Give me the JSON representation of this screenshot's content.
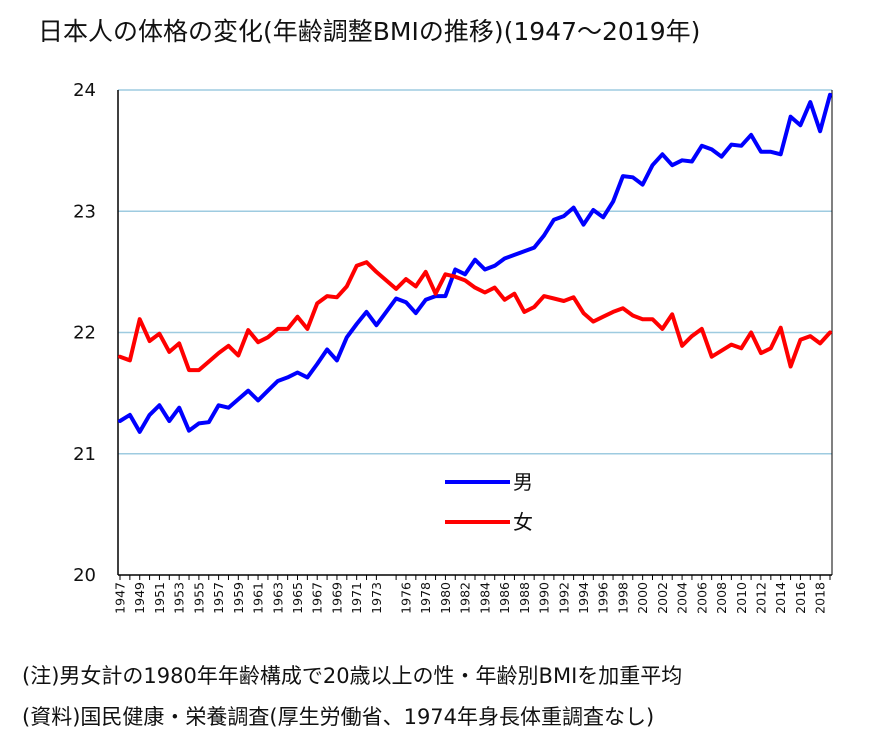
{
  "title": "日本人の体格の変化(年齢調整BMIの推移)(1947〜2019年)",
  "notes": [
    "(注)男女計の1980年年齢構成で20歳以上の性・年齢別BMIを加重平均",
    "(資料)国民健康・栄養調査(厚生労働省、1974年身長体重調査なし)"
  ],
  "chart_data": {
    "type": "line",
    "title": "日本人の体格の変化(年齢調整BMIの推移)(1947〜2019年)",
    "xlabel": "",
    "ylabel": "",
    "ylim": [
      20,
      24
    ],
    "yticks": [
      "20",
      "21",
      "22",
      "23",
      "24"
    ],
    "xticks": [
      "1947",
      "1949",
      "1951",
      "1953",
      "1955",
      "1957",
      "1959",
      "1961",
      "1963",
      "1965",
      "1967",
      "1969",
      "1971",
      "1973",
      "1976",
      "1978",
      "1980",
      "1982",
      "1984",
      "1986",
      "1988",
      "1990",
      "1992",
      "1994",
      "1996",
      "1998",
      "2000",
      "2002",
      "2004",
      "2006",
      "2008",
      "2010",
      "2012",
      "2014",
      "2016",
      "2018"
    ],
    "x": [
      1947,
      1948,
      1949,
      1950,
      1951,
      1952,
      1953,
      1954,
      1955,
      1956,
      1957,
      1958,
      1959,
      1960,
      1961,
      1962,
      1963,
      1964,
      1965,
      1966,
      1967,
      1968,
      1969,
      1970,
      1971,
      1972,
      1973,
      1975,
      1976,
      1977,
      1978,
      1979,
      1980,
      1981,
      1982,
      1983,
      1984,
      1985,
      1986,
      1987,
      1988,
      1989,
      1990,
      1991,
      1992,
      1993,
      1994,
      1995,
      1996,
      1997,
      1998,
      1999,
      2000,
      2001,
      2002,
      2003,
      2004,
      2005,
      2006,
      2007,
      2008,
      2009,
      2010,
      2011,
      2012,
      2013,
      2014,
      2015,
      2016,
      2017,
      2018,
      2019
    ],
    "grid": true,
    "legend_position": "center",
    "series": [
      {
        "name": "男",
        "color": "#0000ff",
        "values": [
          21.27,
          21.32,
          21.18,
          21.32,
          21.4,
          21.27,
          21.38,
          21.19,
          21.25,
          21.26,
          21.4,
          21.38,
          21.45,
          21.52,
          21.44,
          21.52,
          21.6,
          21.63,
          21.67,
          21.63,
          21.74,
          21.86,
          21.77,
          21.96,
          22.07,
          22.17,
          22.06,
          22.28,
          22.25,
          22.16,
          22.27,
          22.3,
          22.3,
          22.52,
          22.48,
          22.6,
          22.52,
          22.55,
          22.61,
          22.64,
          22.67,
          22.7,
          22.8,
          22.93,
          22.96,
          23.03,
          22.89,
          23.01,
          22.95,
          23.08,
          23.29,
          23.28,
          23.22,
          23.38,
          23.47,
          23.38,
          23.42,
          23.41,
          23.54,
          23.51,
          23.45,
          23.55,
          23.54,
          23.63,
          23.49,
          23.49,
          23.47,
          23.78,
          23.71,
          23.9,
          23.66,
          23.96
        ]
      },
      {
        "name": "女",
        "color": "#ff0000",
        "values": [
          21.8,
          21.77,
          22.11,
          21.93,
          21.99,
          21.84,
          21.91,
          21.69,
          21.69,
          21.76,
          21.83,
          21.89,
          21.81,
          22.02,
          21.92,
          21.96,
          22.03,
          22.03,
          22.13,
          22.03,
          22.24,
          22.3,
          22.29,
          22.38,
          22.55,
          22.58,
          22.5,
          22.36,
          22.44,
          22.38,
          22.5,
          22.32,
          22.48,
          22.46,
          22.43,
          22.37,
          22.33,
          22.37,
          22.27,
          22.32,
          22.17,
          22.21,
          22.3,
          22.28,
          22.26,
          22.29,
          22.16,
          22.09,
          22.13,
          22.17,
          22.2,
          22.14,
          22.11,
          22.11,
          22.03,
          22.15,
          21.89,
          21.97,
          22.03,
          21.8,
          21.85,
          21.9,
          21.87,
          22.0,
          21.83,
          21.87,
          22.04,
          21.72,
          21.94,
          21.97,
          21.91,
          22.0
        ]
      }
    ]
  }
}
